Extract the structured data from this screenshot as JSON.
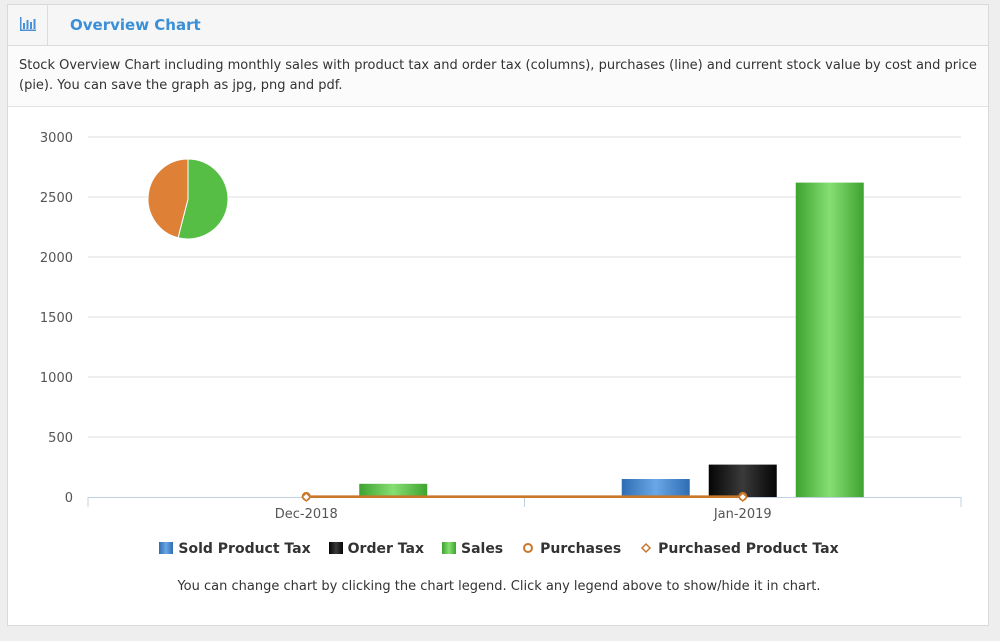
{
  "panel": {
    "title": "Overview Chart",
    "icon": "bar-chart-icon",
    "description": "Stock Overview Chart including monthly sales with product tax and order tax (columns), purchases (line) and current stock value by cost and price (pie). You can save the graph as jpg, png and pdf.",
    "footnote": "You can change chart by clicking the chart legend. Click any legend above to show/hide it in chart."
  },
  "chart_data": {
    "type": "bar",
    "categories": [
      "Dec-2018",
      "Jan-2019"
    ],
    "ylim": [
      0,
      3000
    ],
    "yticks": [
      0,
      500,
      1000,
      1500,
      2000,
      2500,
      3000
    ],
    "grid": true,
    "legend_position": "bottom",
    "series": [
      {
        "name": "Sold Product Tax",
        "kind": "column",
        "color": "#3d7fc9",
        "values": [
          0,
          150
        ]
      },
      {
        "name": "Order Tax",
        "kind": "column",
        "color": "#111111",
        "values": [
          0,
          270
        ]
      },
      {
        "name": "Sales",
        "kind": "column",
        "color": "#4db33d",
        "values": [
          110,
          2620
        ]
      },
      {
        "name": "Purchases",
        "kind": "line",
        "color": "#c9772b",
        "values": [
          5,
          5
        ]
      },
      {
        "name": "Purchased Product Tax",
        "kind": "line",
        "color": "#c9772b",
        "values": [
          0,
          0
        ]
      }
    ],
    "pie": {
      "slices": [
        {
          "color": "#de8136",
          "value": 46
        },
        {
          "color": "#56bd45",
          "value": 54
        }
      ]
    }
  }
}
